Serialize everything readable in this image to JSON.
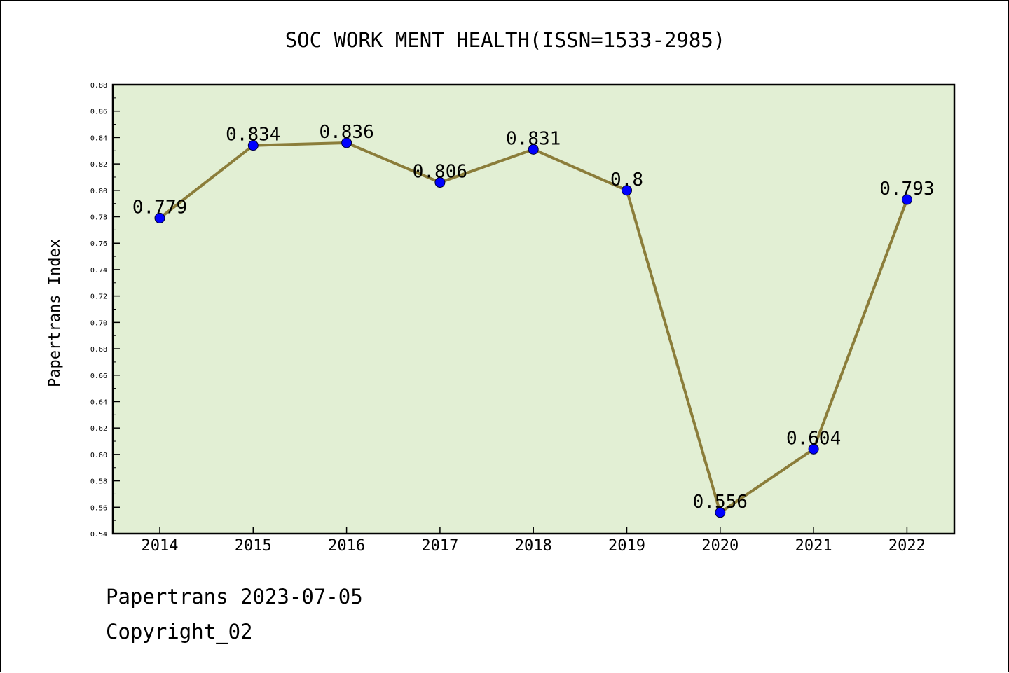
{
  "chart_data": {
    "type": "line",
    "title": "SOC WORK MENT HEALTH(ISSN=1533-2985)",
    "xlabel": "",
    "ylabel": "Papertrans Index",
    "categories": [
      "2014",
      "2015",
      "2016",
      "2017",
      "2018",
      "2019",
      "2020",
      "2021",
      "2022"
    ],
    "values": [
      0.779,
      0.834,
      0.836,
      0.806,
      0.831,
      0.8,
      0.556,
      0.604,
      0.793
    ],
    "data_labels": [
      "0.779",
      "0.834",
      "0.836",
      "0.806",
      "0.831",
      "0.8",
      "0.556",
      "0.604",
      "0.793"
    ],
    "ylim": [
      0.54,
      0.88
    ],
    "yticks": [
      "0.54",
      "0.56",
      "0.58",
      "0.60",
      "0.62",
      "0.64",
      "0.66",
      "0.68",
      "0.70",
      "0.72",
      "0.74",
      "0.76",
      "0.78",
      "0.80",
      "0.82",
      "0.84",
      "0.86",
      "0.88"
    ],
    "grid": false,
    "colors": {
      "plot_background": "#e2efd4",
      "line": "#8b7d3a",
      "marker": "#0000ff"
    }
  },
  "footer": {
    "source": "Papertrans 2023-07-05",
    "copyright": "Copyright_02"
  }
}
